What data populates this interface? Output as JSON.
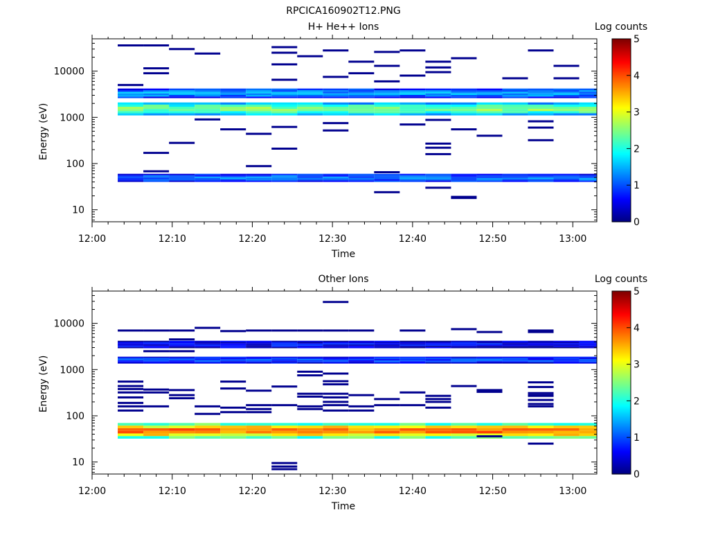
{
  "figure": {
    "title": "RPCICA160902T12.PNG"
  },
  "chart_data": [
    {
      "type": "heatmap",
      "title": "H+ He++ Ions",
      "xlabel": "Time",
      "ylabel": "Energy (eV)",
      "x_ticks": [
        "12:00",
        "12:10",
        "12:20",
        "12:30",
        "12:40",
        "12:50",
        "13:00"
      ],
      "x_range_minutes": [
        0,
        63
      ],
      "y_scale": "log",
      "y_ticks": [
        "10",
        "100",
        "1000",
        "10000"
      ],
      "y_range": [
        5.5,
        50000
      ],
      "colorbar": {
        "label": "Log counts",
        "range": [
          0,
          5
        ],
        "ticks": [
          "0",
          "1",
          "2",
          "3",
          "4",
          "5"
        ]
      },
      "time_bins_minutes": [
        3.2,
        6.4,
        9.6,
        12.8,
        16.0,
        19.2,
        22.4,
        25.6,
        28.8,
        32.0,
        35.2,
        38.4,
        41.6,
        44.8,
        48.0,
        51.2,
        54.4,
        57.6,
        60.8
      ],
      "bands": [
        {
          "e_low": 40,
          "e_high": 60,
          "level": 1.2
        },
        {
          "e_low": 1100,
          "e_high": 2100,
          "level": 2.5
        },
        {
          "e_low": 2600,
          "e_high": 4200,
          "level": 1.4
        }
      ],
      "sparse": [
        {
          "t": 4.5,
          "e": 36000
        },
        {
          "t": 7.0,
          "e": 36000
        },
        {
          "t": 10.5,
          "e": 30000
        },
        {
          "t": 14.5,
          "e": 24000
        },
        {
          "t": 25.0,
          "e": 33000
        },
        {
          "t": 25.0,
          "e": 25000
        },
        {
          "t": 28.0,
          "e": 21000
        },
        {
          "t": 31.5,
          "e": 28000
        },
        {
          "t": 35.0,
          "e": 16000
        },
        {
          "t": 38.0,
          "e": 26000
        },
        {
          "t": 41.0,
          "e": 28000
        },
        {
          "t": 44.5,
          "e": 16000
        },
        {
          "t": 47.5,
          "e": 19000
        },
        {
          "t": 56.0,
          "e": 28000
        },
        {
          "t": 60.0,
          "e": 13000
        },
        {
          "t": 8.0,
          "e": 11500
        },
        {
          "t": 8.0,
          "e": 9000
        },
        {
          "t": 25.0,
          "e": 14000
        },
        {
          "t": 35.0,
          "e": 9000
        },
        {
          "t": 38.0,
          "e": 13000
        },
        {
          "t": 41.0,
          "e": 8000
        },
        {
          "t": 44.5,
          "e": 9500
        },
        {
          "t": 44.5,
          "e": 12000
        },
        {
          "t": 53.5,
          "e": 7000
        },
        {
          "t": 60.0,
          "e": 7000
        },
        {
          "t": 31.5,
          "e": 7500
        },
        {
          "t": 4.5,
          "e": 5000
        },
        {
          "t": 25.0,
          "e": 6500
        },
        {
          "t": 38.0,
          "e": 6000
        },
        {
          "t": 14.5,
          "e": 900
        },
        {
          "t": 17.5,
          "e": 550
        },
        {
          "t": 21.0,
          "e": 440
        },
        {
          "t": 24.5,
          "e": 620
        },
        {
          "t": 31.5,
          "e": 750
        },
        {
          "t": 31.5,
          "e": 520
        },
        {
          "t": 41.0,
          "e": 700
        },
        {
          "t": 44.5,
          "e": 880
        },
        {
          "t": 47.5,
          "e": 550
        },
        {
          "t": 51.0,
          "e": 400
        },
        {
          "t": 54.5,
          "e": 600
        },
        {
          "t": 54.5,
          "e": 820
        },
        {
          "t": 7.5,
          "e": 170
        },
        {
          "t": 10.5,
          "e": 280
        },
        {
          "t": 24.5,
          "e": 210
        },
        {
          "t": 44.5,
          "e": 270
        },
        {
          "t": 44.5,
          "e": 220
        },
        {
          "t": 44.5,
          "e": 160
        },
        {
          "t": 57.5,
          "e": 320
        },
        {
          "t": 21.0,
          "e": 88
        },
        {
          "t": 8.0,
          "e": 68
        },
        {
          "t": 38.0,
          "e": 65
        },
        {
          "t": 38.0,
          "e": 24
        },
        {
          "t": 44.5,
          "e": 30
        },
        {
          "t": 48.0,
          "e": 19
        },
        {
          "t": 48.0,
          "e": 18
        }
      ]
    },
    {
      "type": "heatmap",
      "title": "Other Ions",
      "xlabel": "Time",
      "ylabel": "Energy (eV)",
      "x_ticks": [
        "12:00",
        "12:10",
        "12:20",
        "12:30",
        "12:40",
        "12:50",
        "13:00"
      ],
      "x_range_minutes": [
        0,
        63
      ],
      "y_scale": "log",
      "y_ticks": [
        "10",
        "100",
        "1000",
        "10000"
      ],
      "y_range": [
        5.5,
        50000
      ],
      "colorbar": {
        "label": "Log counts",
        "range": [
          0,
          5
        ],
        "ticks": [
          "0",
          "1",
          "2",
          "3",
          "4",
          "5"
        ]
      },
      "time_bins_minutes": [
        3.2,
        6.4,
        9.6,
        12.8,
        16.0,
        19.2,
        22.4,
        25.6,
        28.8,
        32.0,
        35.2,
        38.4,
        41.6,
        44.8,
        48.0,
        51.2,
        54.4,
        57.6,
        60.8
      ],
      "bands": [
        {
          "e_low": 32,
          "e_high": 70,
          "level": 3.8
        },
        {
          "e_low": 1350,
          "e_high": 1900,
          "level": 0.9
        },
        {
          "e_low": 2900,
          "e_high": 4200,
          "level": 0.6
        }
      ],
      "sparse": [
        {
          "t": 31.5,
          "e": 29000
        },
        {
          "t": 4.5,
          "e": 7000
        },
        {
          "t": 7.5,
          "e": 7000
        },
        {
          "t": 10.5,
          "e": 7000
        },
        {
          "t": 14.5,
          "e": 8000
        },
        {
          "t": 17.5,
          "e": 6800
        },
        {
          "t": 21.0,
          "e": 7000
        },
        {
          "t": 24.5,
          "e": 7000
        },
        {
          "t": 28.0,
          "e": 7000
        },
        {
          "t": 31.5,
          "e": 7000
        },
        {
          "t": 35.0,
          "e": 7000
        },
        {
          "t": 41.0,
          "e": 7000
        },
        {
          "t": 48.0,
          "e": 7500
        },
        {
          "t": 51.0,
          "e": 6500
        },
        {
          "t": 54.5,
          "e": 7000
        },
        {
          "t": 57.5,
          "e": 6500
        },
        {
          "t": 10.5,
          "e": 4500
        },
        {
          "t": 7.5,
          "e": 2500
        },
        {
          "t": 10.5,
          "e": 2500
        },
        {
          "t": 28.0,
          "e": 900
        },
        {
          "t": 31.5,
          "e": 820
        },
        {
          "t": 28.0,
          "e": 750
        },
        {
          "t": 31.5,
          "e": 560
        },
        {
          "t": 31.5,
          "e": 480
        },
        {
          "t": 4.5,
          "e": 550
        },
        {
          "t": 4.5,
          "e": 440
        },
        {
          "t": 4.5,
          "e": 380
        },
        {
          "t": 4.5,
          "e": 320
        },
        {
          "t": 4.5,
          "e": 250
        },
        {
          "t": 4.5,
          "e": 190
        },
        {
          "t": 4.5,
          "e": 160
        },
        {
          "t": 4.5,
          "e": 130
        },
        {
          "t": 7.5,
          "e": 370
        },
        {
          "t": 7.5,
          "e": 320
        },
        {
          "t": 7.5,
          "e": 160
        },
        {
          "t": 10.5,
          "e": 360
        },
        {
          "t": 10.5,
          "e": 280
        },
        {
          "t": 10.5,
          "e": 240
        },
        {
          "t": 14.5,
          "e": 160
        },
        {
          "t": 14.5,
          "e": 110
        },
        {
          "t": 17.5,
          "e": 550
        },
        {
          "t": 17.5,
          "e": 390
        },
        {
          "t": 17.5,
          "e": 150
        },
        {
          "t": 17.5,
          "e": 120
        },
        {
          "t": 21.0,
          "e": 350
        },
        {
          "t": 21.0,
          "e": 170
        },
        {
          "t": 21.0,
          "e": 140
        },
        {
          "t": 21.0,
          "e": 120
        },
        {
          "t": 24.5,
          "e": 430
        },
        {
          "t": 24.5,
          "e": 170
        },
        {
          "t": 28.0,
          "e": 300
        },
        {
          "t": 28.0,
          "e": 260
        },
        {
          "t": 28.0,
          "e": 160
        },
        {
          "t": 28.0,
          "e": 140
        },
        {
          "t": 31.5,
          "e": 300
        },
        {
          "t": 31.5,
          "e": 250
        },
        {
          "t": 31.5,
          "e": 200
        },
        {
          "t": 31.5,
          "e": 170
        },
        {
          "t": 31.5,
          "e": 130
        },
        {
          "t": 35.0,
          "e": 280
        },
        {
          "t": 35.0,
          "e": 160
        },
        {
          "t": 35.0,
          "e": 130
        },
        {
          "t": 38.0,
          "e": 230
        },
        {
          "t": 38.0,
          "e": 170
        },
        {
          "t": 41.0,
          "e": 320
        },
        {
          "t": 41.0,
          "e": 170
        },
        {
          "t": 44.5,
          "e": 270
        },
        {
          "t": 44.5,
          "e": 230
        },
        {
          "t": 44.5,
          "e": 200
        },
        {
          "t": 44.5,
          "e": 150
        },
        {
          "t": 48.0,
          "e": 440
        },
        {
          "t": 51.0,
          "e": 360
        },
        {
          "t": 51.0,
          "e": 330
        },
        {
          "t": 54.5,
          "e": 280
        },
        {
          "t": 57.5,
          "e": 530
        },
        {
          "t": 57.5,
          "e": 420
        },
        {
          "t": 57.5,
          "e": 310
        },
        {
          "t": 57.5,
          "e": 270
        },
        {
          "t": 57.5,
          "e": 220
        },
        {
          "t": 57.5,
          "e": 180
        },
        {
          "t": 57.5,
          "e": 160
        },
        {
          "t": 24.5,
          "e": 9.5
        },
        {
          "t": 24.5,
          "e": 8
        },
        {
          "t": 24.5,
          "e": 7
        },
        {
          "t": 51.0,
          "e": 36
        },
        {
          "t": 54.5,
          "e": 25
        }
      ]
    }
  ]
}
